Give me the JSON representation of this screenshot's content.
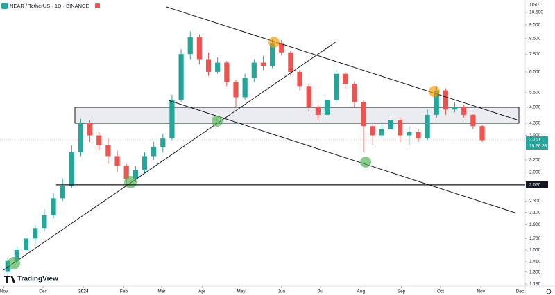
{
  "chart_data": {
    "type": "candlestick",
    "symbol_title": "NEAR / TetherUS · 1D · BINANCE",
    "currency": "USDT",
    "logo": "TradingView",
    "log_scale": true,
    "up_color": "#26a69a",
    "down_color": "#ef5350",
    "x": [
      3,
      10,
      17,
      24,
      31,
      38,
      45,
      52,
      59,
      66,
      73,
      80,
      87,
      94,
      101,
      108,
      115,
      122,
      129,
      136,
      143,
      150,
      157,
      164,
      171,
      178,
      185,
      192,
      199,
      206,
      213,
      220,
      227,
      234,
      241,
      248,
      255,
      262,
      269,
      276,
      283,
      290,
      297,
      304,
      311,
      318,
      325,
      332,
      339,
      346,
      353,
      360,
      367
    ],
    "open": [
      1.3,
      1.42,
      1.55,
      1.7,
      1.85,
      2.05,
      2.35,
      2.6,
      3.4,
      4.3,
      3.9,
      3.6,
      3.3,
      3.05,
      2.75,
      2.95,
      3.3,
      3.55,
      3.8,
      5.2,
      7.5,
      8.6,
      7.2,
      6.5,
      7.0,
      6.0,
      5.3,
      6.2,
      7.0,
      6.8,
      8.2,
      7.6,
      6.5,
      5.8,
      4.9,
      4.6,
      5.2,
      6.4,
      5.9,
      5.1,
      4.2,
      3.9,
      4.1,
      4.4,
      3.9,
      4.0,
      3.8,
      4.6,
      5.6,
      4.8,
      4.9,
      4.6,
      4.2
    ],
    "high": [
      1.46,
      1.6,
      1.75,
      1.9,
      2.15,
      2.45,
      2.75,
      3.6,
      4.45,
      4.4,
      4.0,
      3.8,
      3.45,
      3.1,
      3.05,
      3.4,
      3.7,
      3.95,
      5.4,
      7.8,
      9.0,
      8.8,
      7.6,
      7.3,
      7.1,
      6.1,
      6.4,
      7.2,
      7.4,
      8.5,
      8.4,
      7.7,
      6.6,
      5.9,
      5.0,
      5.4,
      6.6,
      6.5,
      6.0,
      5.2,
      4.3,
      4.3,
      4.6,
      4.5,
      4.2,
      4.1,
      4.8,
      5.8,
      5.7,
      5.1,
      5.0,
      4.65,
      4.25
    ],
    "low": [
      1.25,
      1.38,
      1.5,
      1.62,
      1.8,
      2.0,
      2.3,
      2.55,
      3.3,
      3.7,
      3.45,
      3.1,
      2.9,
      2.6,
      2.68,
      2.88,
      3.2,
      3.4,
      3.75,
      5.1,
      7.2,
      6.9,
      6.3,
      6.4,
      5.8,
      4.9,
      5.2,
      6.0,
      6.6,
      6.7,
      7.4,
      6.3,
      5.6,
      4.7,
      4.4,
      4.5,
      5.1,
      5.7,
      4.9,
      3.4,
      3.6,
      3.8,
      4.0,
      3.7,
      3.6,
      3.7,
      3.75,
      4.5,
      4.6,
      4.7,
      4.5,
      4.1,
      3.7
    ],
    "close": [
      1.42,
      1.55,
      1.7,
      1.85,
      2.05,
      2.35,
      2.6,
      3.4,
      4.3,
      3.9,
      3.6,
      3.3,
      3.05,
      2.75,
      2.95,
      3.3,
      3.55,
      3.8,
      5.2,
      7.5,
      8.6,
      7.2,
      6.5,
      7.0,
      6.0,
      5.3,
      6.2,
      7.0,
      6.8,
      8.2,
      7.6,
      6.5,
      5.8,
      4.9,
      4.6,
      5.2,
      6.4,
      5.9,
      5.1,
      4.2,
      3.9,
      4.1,
      4.4,
      3.9,
      4.0,
      3.8,
      4.6,
      5.6,
      4.8,
      4.9,
      4.6,
      4.2,
      3.75
    ],
    "xlim": [
      -3,
      400
    ],
    "xticks": [
      {
        "value": 0,
        "label": "Nov"
      },
      {
        "value": 30,
        "label": "Dec"
      },
      {
        "value": 61,
        "label": "2024"
      },
      {
        "value": 92,
        "label": "Feb"
      },
      {
        "value": 121,
        "label": "Mar"
      },
      {
        "value": 152,
        "label": "Apr"
      },
      {
        "value": 182,
        "label": "May"
      },
      {
        "value": 213,
        "label": "Jun"
      },
      {
        "value": 243,
        "label": "Jul"
      },
      {
        "value": 274,
        "label": "Aug"
      },
      {
        "value": 305,
        "label": "Sep"
      },
      {
        "value": 335,
        "label": "Oct"
      },
      {
        "value": 366,
        "label": "Nov"
      },
      {
        "value": 396,
        "label": "Dec"
      }
    ],
    "ylim": [
      1.16,
      11.6
    ],
    "yticks": [
      {
        "value": 10.5,
        "label": "10.500"
      },
      {
        "value": 9.5,
        "label": "9.500"
      },
      {
        "value": 8.5,
        "label": "8.500"
      },
      {
        "value": 7.5,
        "label": "7.500"
      },
      {
        "value": 6.5,
        "label": "6.500"
      },
      {
        "value": 5.5,
        "label": "5.500"
      },
      {
        "value": 4.9,
        "label": "4.900"
      },
      {
        "value": 4.3,
        "label": "4.300"
      },
      {
        "value": 3.9,
        "label": "3.900"
      },
      {
        "value": 3.2,
        "label": "3.200"
      },
      {
        "value": 2.9,
        "label": "2.900"
      },
      {
        "value": 2.3,
        "label": "2.300"
      },
      {
        "value": 2.1,
        "label": "2.100"
      },
      {
        "value": 1.9,
        "label": "1.900"
      },
      {
        "value": 1.7,
        "label": "1.700"
      },
      {
        "value": 1.55,
        "label": "1.550"
      },
      {
        "value": 1.41,
        "label": "1.410"
      },
      {
        "value": 1.3,
        "label": "1.300"
      },
      {
        "value": 1.18,
        "label": "1.180"
      }
    ],
    "horizontal_line": {
      "value": 2.62,
      "label": "2.620"
    },
    "last_price": {
      "value": 3.761,
      "label": "3.761",
      "countdown": "19:26:33"
    }
  }
}
